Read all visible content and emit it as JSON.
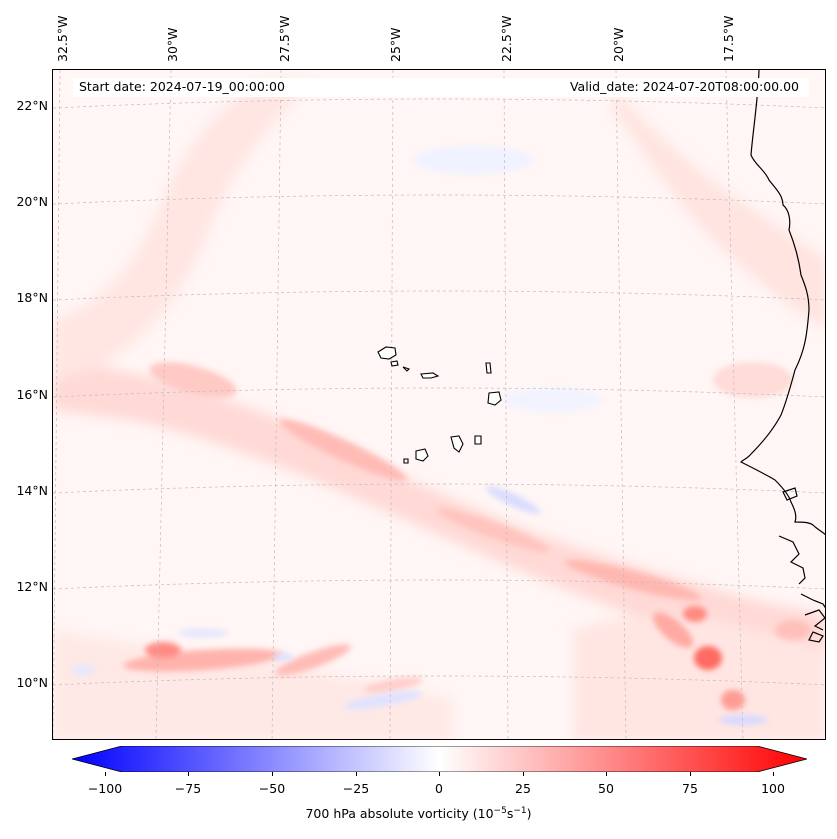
{
  "longitude_labels": [
    "32.5°W",
    "30°W",
    "27.5°W",
    "25°W",
    "22.5°W",
    "20°W",
    "17.5°W"
  ],
  "latitude_labels": [
    "22°N",
    "20°N",
    "18°N",
    "16°N",
    "14°N",
    "12°N",
    "10°N"
  ],
  "start_date": "Start date: 2024-07-19_00:00:00",
  "valid_date": "Valid_date: 2024-07-20T08:00:00.00",
  "colorbar": {
    "ticks": [
      "−100",
      "−75",
      "−50",
      "−25",
      "0",
      "25",
      "50",
      "75",
      "100"
    ],
    "label_prefix": "700 hPa absolute vorticity (10",
    "label_exp1": "−5",
    "label_mid": "s",
    "label_exp2": "−1",
    "label_suffix": ")",
    "range": [
      -100,
      100
    ],
    "cmap": "bwr",
    "extend": "both"
  },
  "colors": {
    "negative_max": "#0000ff",
    "zero": "#ffffff",
    "positive_max": "#ff0000",
    "coastline": "#000000",
    "gridline": "#bdbdbd"
  }
}
